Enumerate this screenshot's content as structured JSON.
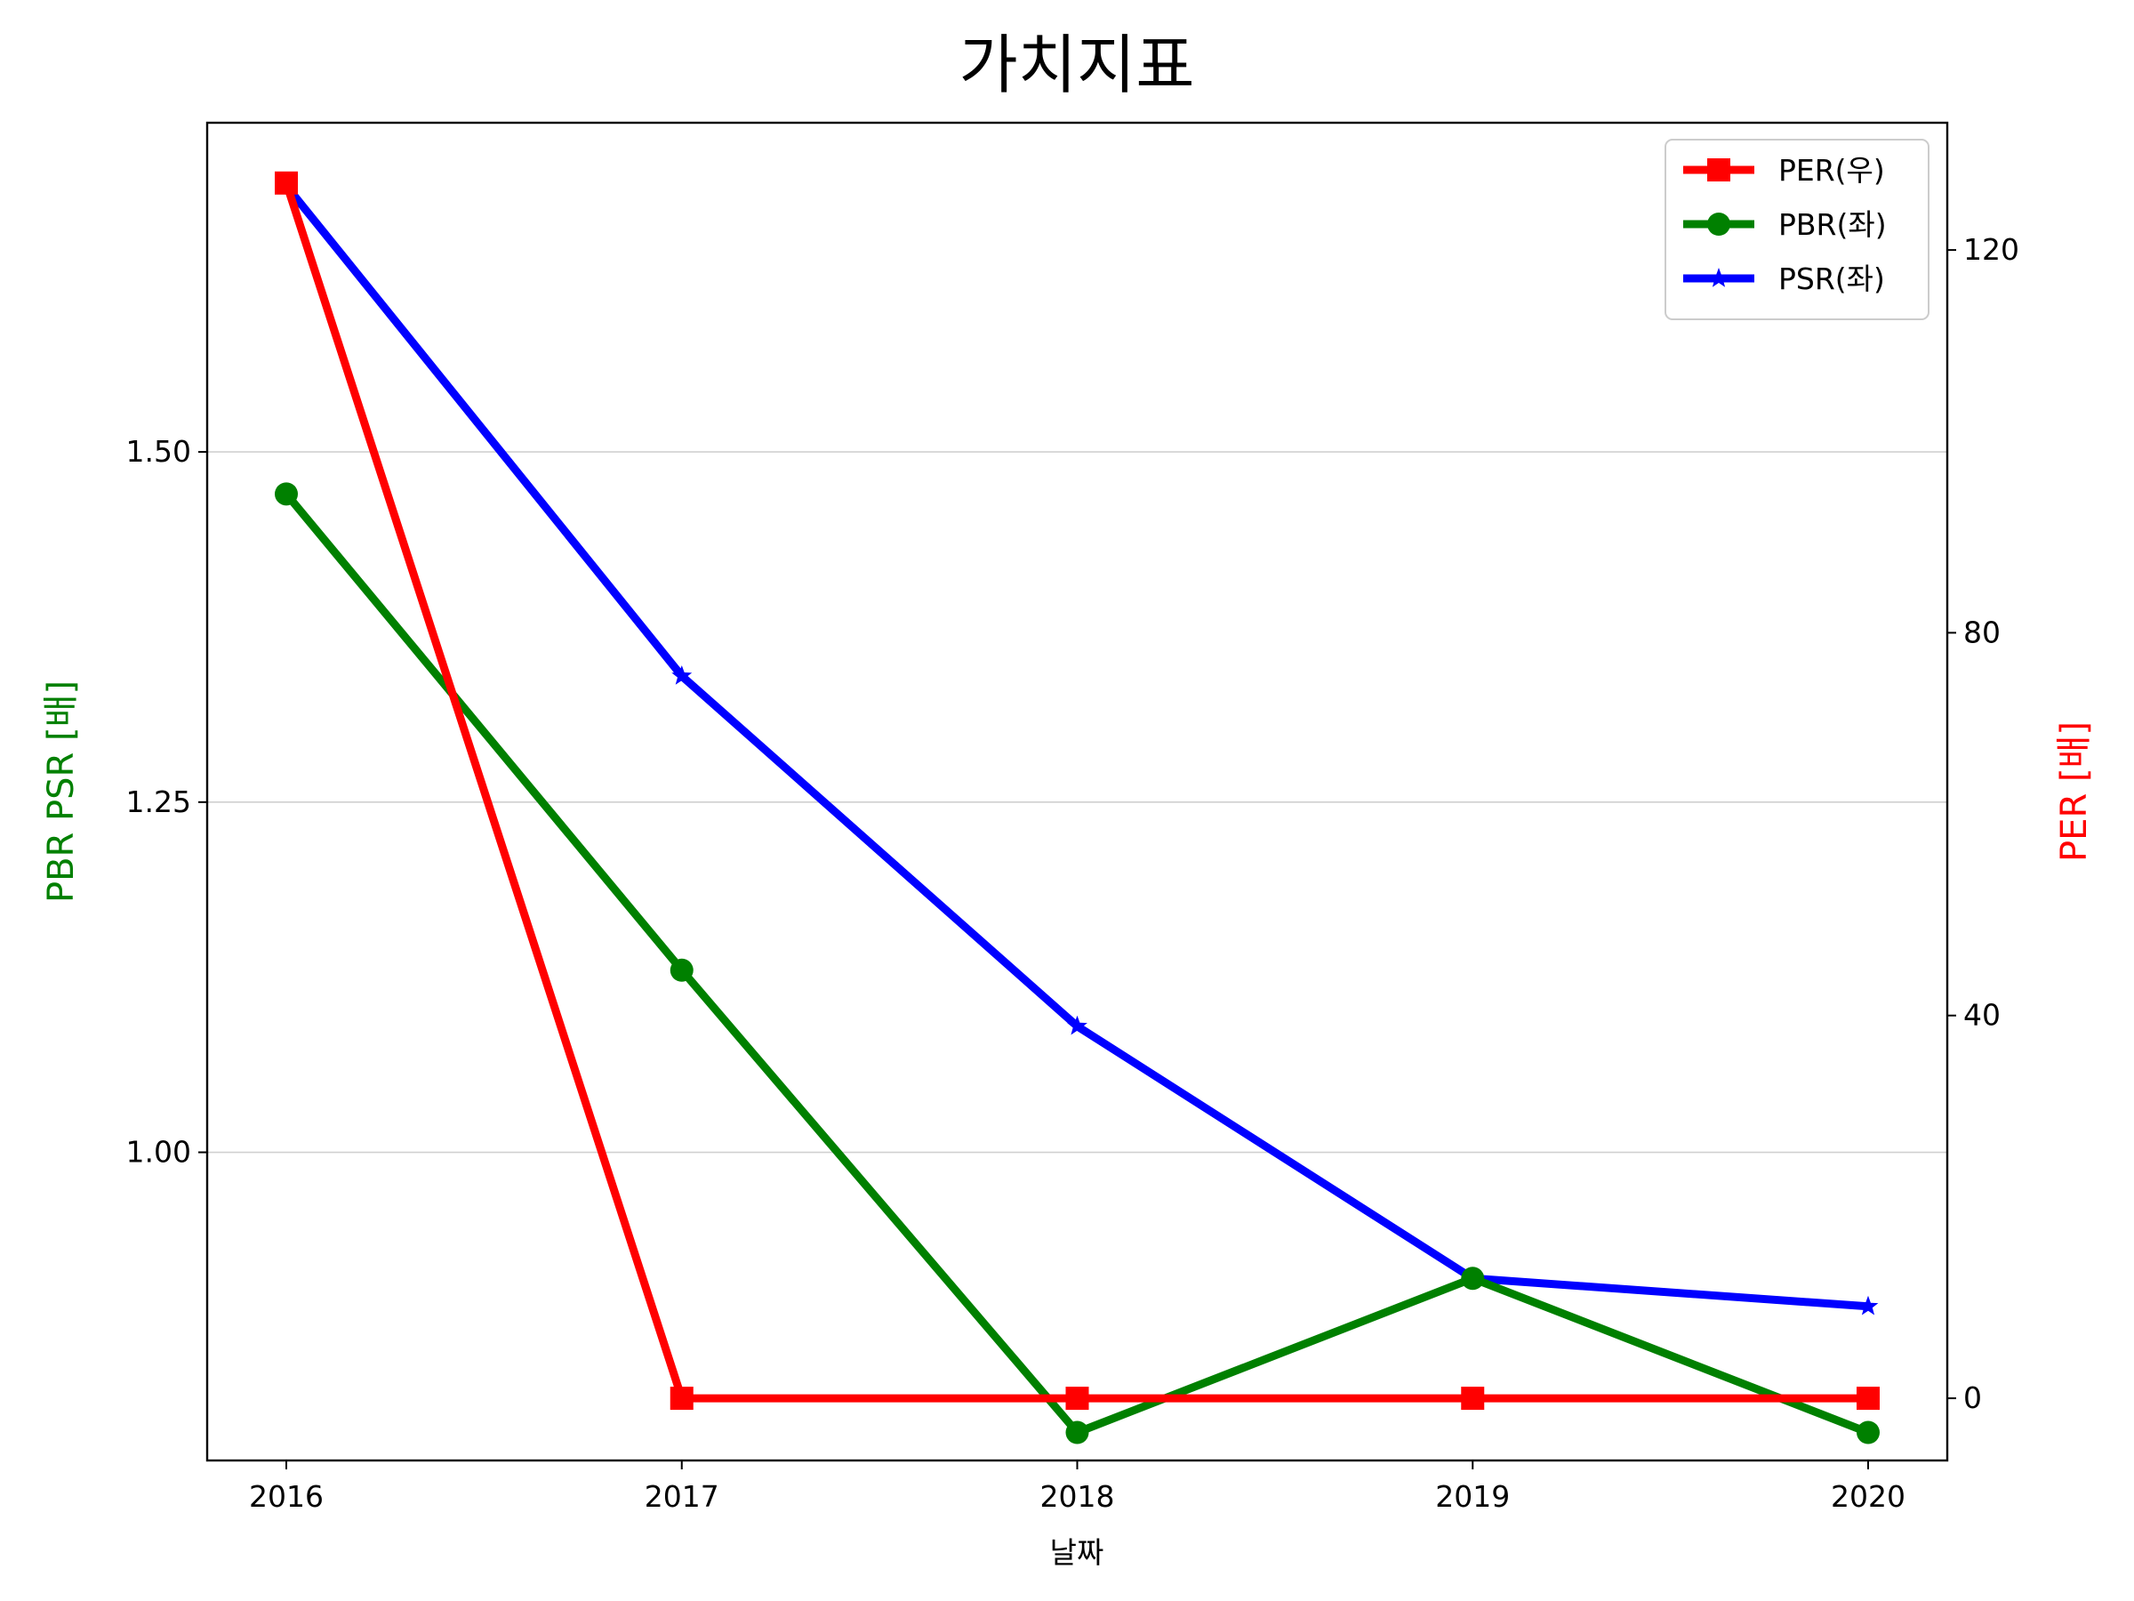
{
  "chart_data": {
    "type": "line",
    "title": "가치지표",
    "xlabel": "날짜",
    "ylabel_left": "PBR PSR [배]",
    "ylabel_right": "PER [배]",
    "categories": [
      "2016",
      "2017",
      "2018",
      "2019",
      "2020"
    ],
    "left_axis": {
      "ylim": [
        0.78,
        1.735
      ],
      "ticks": [
        1.0,
        1.25,
        1.5
      ],
      "tick_labels": [
        "1.00",
        "1.25",
        "1.50"
      ],
      "grid": true
    },
    "right_axis": {
      "ylim": [
        -6.5,
        133.3
      ],
      "ticks": [
        0,
        40,
        80,
        120
      ],
      "tick_labels": [
        "0",
        "40",
        "80",
        "120"
      ]
    },
    "series": [
      {
        "name": "PER(우)",
        "axis": "right",
        "color": "#ff0000",
        "marker": "square",
        "values": [
          127,
          0,
          0,
          0,
          0
        ]
      },
      {
        "name": "PBR(좌)",
        "axis": "left",
        "color": "#008000",
        "marker": "circle",
        "values": [
          1.47,
          1.13,
          0.8,
          0.91,
          0.8
        ]
      },
      {
        "name": "PSR(좌)",
        "axis": "left",
        "color": "#0000ff",
        "marker": "star",
        "values": [
          1.69,
          1.34,
          1.09,
          0.91,
          0.89
        ]
      }
    ],
    "legend_position": "top-right"
  }
}
